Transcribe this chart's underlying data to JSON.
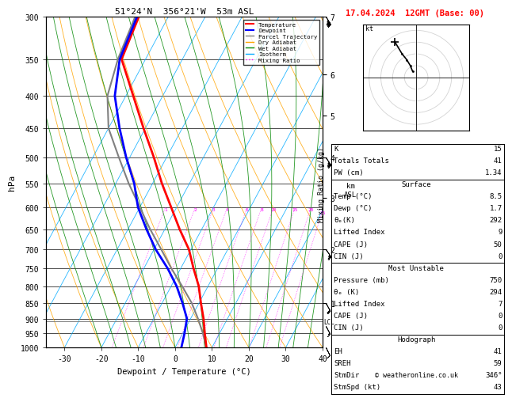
{
  "title_left": "51°24'N  356°21'W  53m ASL",
  "title_right": "17.04.2024  12GMT (Base: 00)",
  "xlabel": "Dewpoint / Temperature (°C)",
  "ylabel_left": "hPa",
  "pressure_levels": [
    300,
    350,
    400,
    450,
    500,
    550,
    600,
    650,
    700,
    750,
    800,
    850,
    900,
    950,
    1000
  ],
  "temp_ticks": [
    -30,
    -20,
    -10,
    0,
    10,
    20,
    30,
    40
  ],
  "mixing_ratio_labels": [
    1,
    2,
    3,
    4,
    6,
    8,
    10,
    15,
    20,
    25
  ],
  "km_ticks": [
    1,
    2,
    3,
    4,
    5,
    6,
    7
  ],
  "km_pressures": [
    850,
    700,
    580,
    500,
    430,
    370,
    300
  ],
  "lcl_pressure": 910,
  "temperature_profile": {
    "pressure": [
      1000,
      950,
      900,
      850,
      800,
      750,
      700,
      650,
      600,
      550,
      500,
      450,
      400,
      350,
      300
    ],
    "temp": [
      8.5,
      6.0,
      3.5,
      0.5,
      -2.5,
      -6.5,
      -10.5,
      -16.0,
      -21.5,
      -27.5,
      -33.5,
      -40.5,
      -48.0,
      -56.5,
      -58.0
    ]
  },
  "dewpoint_profile": {
    "pressure": [
      1000,
      950,
      900,
      850,
      800,
      750,
      700,
      650,
      600,
      550,
      500,
      450,
      400,
      350,
      300
    ],
    "temp": [
      1.7,
      0.5,
      -1.0,
      -4.5,
      -8.5,
      -13.5,
      -19.5,
      -25.0,
      -30.5,
      -35.0,
      -41.0,
      -47.0,
      -53.0,
      -57.0,
      -58.5
    ]
  },
  "parcel_profile": {
    "pressure": [
      1000,
      950,
      900,
      850,
      800,
      750,
      700,
      650,
      600,
      550,
      500,
      450,
      400,
      350,
      300
    ],
    "temp": [
      8.5,
      5.5,
      2.0,
      -2.0,
      -7.0,
      -12.5,
      -18.0,
      -24.0,
      -30.0,
      -36.5,
      -43.0,
      -50.0,
      -55.0,
      -57.5,
      -59.0
    ]
  },
  "hodo_u": [
    -3,
    -5,
    -8,
    -12,
    -18
  ],
  "hodo_v": [
    5,
    10,
    15,
    20,
    30
  ],
  "wb_pressures": [
    1000,
    925,
    850,
    700,
    500,
    300
  ],
  "wb_u": [
    -5,
    -8,
    -10,
    -15,
    -20,
    -25
  ],
  "wb_v": [
    10,
    15,
    18,
    22,
    30,
    40
  ],
  "colors": {
    "temperature": "#ff0000",
    "dewpoint": "#0000ff",
    "parcel": "#808080",
    "dry_adiabat": "#ffa500",
    "wet_adiabat": "#008800",
    "isotherm": "#00aaff",
    "mixing_ratio": "#ff00ff"
  },
  "legend_labels": [
    "Temperature",
    "Dewpoint",
    "Parcel Trajectory",
    "Dry Adiabat",
    "Wet Adiabat",
    "Isotherm",
    "Mixing Ratio"
  ],
  "stats_k": 15,
  "stats_tt": 41,
  "stats_pw": 1.34,
  "surf_temp": 8.5,
  "surf_dewp": 1.7,
  "surf_theta": 292,
  "surf_li": 9,
  "surf_cape": 50,
  "surf_cin": 0,
  "mu_pres": 750,
  "mu_theta": 294,
  "mu_li": 7,
  "mu_cape": 0,
  "mu_cin": 0,
  "hodo_eh": 41,
  "hodo_sreh": 59,
  "hodo_stmdir": "346°",
  "hodo_stmspd": 43,
  "copyright": "© weatheronline.co.uk"
}
